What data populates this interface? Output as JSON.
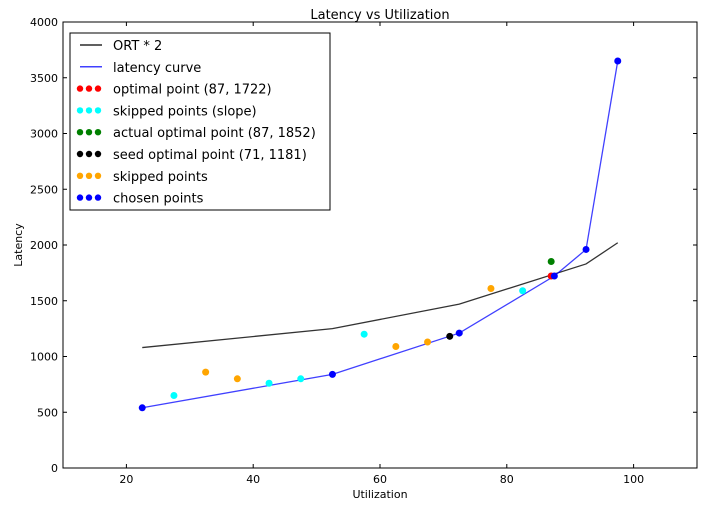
{
  "chart_data": {
    "type": "line",
    "title": "Latency vs Utilization",
    "xlabel": "Utilization",
    "ylabel": "Latency",
    "xlim": [
      10,
      110
    ],
    "ylim": [
      0,
      4000
    ],
    "xticks": [
      20,
      40,
      60,
      80,
      100
    ],
    "yticks": [
      0,
      500,
      1000,
      1500,
      2000,
      2500,
      3000,
      3500,
      4000
    ],
    "legend_position": "top-left",
    "lines": [
      {
        "name": "ORT * 2",
        "color": "#000000",
        "x": [
          22.5,
          52.5,
          72.5,
          92.5,
          97.5
        ],
        "y": [
          1080,
          1250,
          1470,
          1830,
          2020
        ]
      },
      {
        "name": "latency curve",
        "color": "#0000ff",
        "x": [
          22.5,
          52.5,
          72.5,
          87.5,
          92.5,
          97.5
        ],
        "y": [
          540,
          840,
          1210,
          1722,
          1960,
          3650
        ]
      }
    ],
    "scatters": [
      {
        "name": "optimal point (87, 1722)",
        "color": "#ff0000",
        "x": [
          87
        ],
        "y": [
          1722
        ]
      },
      {
        "name": "skipped points (slope)",
        "color": "#00ffff",
        "x": [
          27.5,
          42.5,
          47.5,
          57.5,
          82.5
        ],
        "y": [
          650,
          760,
          800,
          1200,
          1590
        ]
      },
      {
        "name": "actual optimal point (87, 1852)",
        "color": "#008000",
        "x": [
          87
        ],
        "y": [
          1852
        ]
      },
      {
        "name": "seed optimal point (71, 1181)",
        "color": "#000000",
        "x": [
          71
        ],
        "y": [
          1181
        ]
      },
      {
        "name": "skipped points",
        "color": "#ffa500",
        "x": [
          32.5,
          37.5,
          62.5,
          67.5,
          77.5
        ],
        "y": [
          860,
          800,
          1090,
          1130,
          1610
        ]
      },
      {
        "name": "chosen points",
        "color": "#0000ff",
        "x": [
          22.5,
          52.5,
          72.5,
          87.5,
          92.5,
          97.5
        ],
        "y": [
          540,
          840,
          1210,
          1722,
          1960,
          3650
        ]
      }
    ]
  }
}
